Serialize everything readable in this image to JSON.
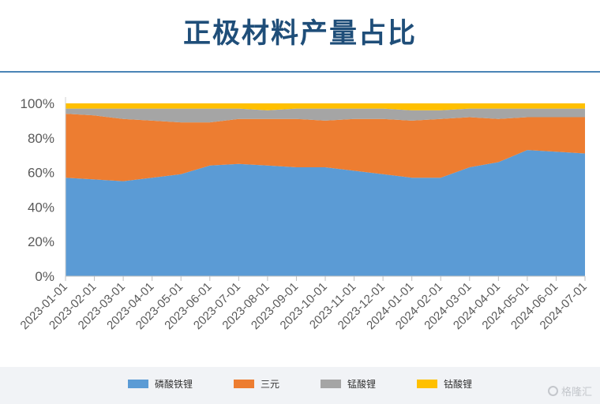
{
  "title": "正极材料产量占比",
  "watermark": "格隆汇",
  "chart_data": {
    "type": "area",
    "stacked": true,
    "ylim": [
      0,
      100
    ],
    "y_ticks": [
      "0%",
      "20%",
      "40%",
      "60%",
      "80%",
      "100%"
    ],
    "categories": [
      "2023-01-01",
      "2023-02-01",
      "2023-03-01",
      "2023-04-01",
      "2023-05-01",
      "2023-06-01",
      "2023-07-01",
      "2023-08-01",
      "2023-09-01",
      "2023-10-01",
      "2023-11-01",
      "2023-12-01",
      "2024-01-01",
      "2024-02-01",
      "2024-03-01",
      "2024-04-01",
      "2024-05-01",
      "2024-06-01",
      "2024-07-01"
    ],
    "series": [
      {
        "name": "磷酸铁锂",
        "color": "#5b9bd5",
        "values": [
          57,
          56,
          55,
          57,
          59,
          64,
          65,
          64,
          63,
          63,
          61,
          59,
          57,
          57,
          63,
          66,
          73,
          72,
          71
        ]
      },
      {
        "name": "三元",
        "color": "#ed7d31",
        "values": [
          37,
          37,
          36,
          33,
          30,
          25,
          26,
          27,
          28,
          27,
          30,
          32,
          33,
          34,
          29,
          25,
          19,
          20,
          21
        ]
      },
      {
        "name": "锰酸锂",
        "color": "#a5a5a5",
        "values": [
          3,
          4,
          6,
          7,
          8,
          8,
          6,
          5,
          6,
          7,
          6,
          6,
          6,
          5,
          5,
          6,
          5,
          5,
          5
        ]
      },
      {
        "name": "钴酸锂",
        "color": "#ffc000",
        "values": [
          3,
          3,
          3,
          3,
          3,
          3,
          3,
          4,
          3,
          3,
          3,
          3,
          4,
          4,
          3,
          3,
          3,
          3,
          3
        ]
      }
    ],
    "grid": false,
    "legend_position": "bottom"
  }
}
